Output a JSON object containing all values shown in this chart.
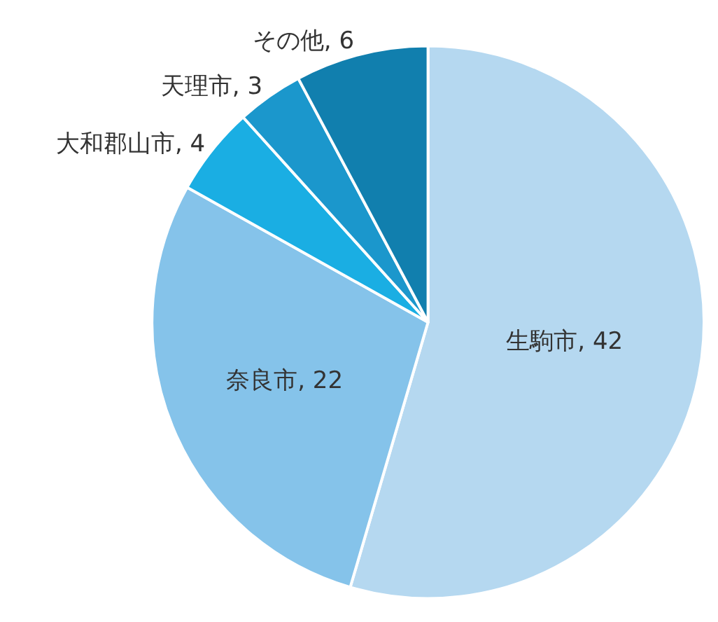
{
  "chart_data": {
    "type": "pie",
    "categories": [
      "生駒市",
      "奈良市",
      "大和郡山市",
      "天理市",
      "その他"
    ],
    "values": [
      42,
      22,
      4,
      3,
      6
    ],
    "value_labels": [
      ", 42",
      ", 22",
      ", 4",
      ", 3",
      ", 6"
    ],
    "colors": [
      "#b5d8f0",
      "#85c3ea",
      "#1aaee3",
      "#1b97cc",
      "#117fae"
    ]
  }
}
